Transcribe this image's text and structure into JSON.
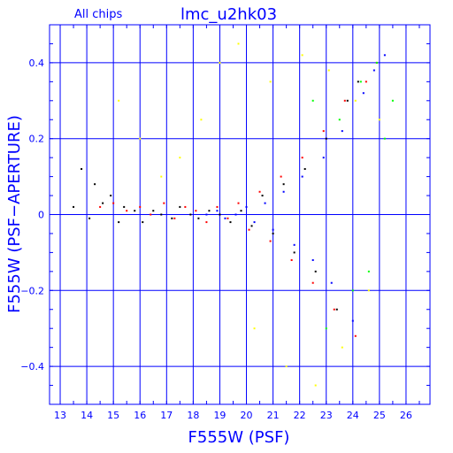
{
  "chart_data": {
    "type": "scatter",
    "title": "lmc_u2hk03",
    "subtitle": "All chips",
    "xlabel": "F555W (PSF)",
    "ylabel": "F555W (PSF−APERTURE)",
    "xlim": [
      12.6,
      26.9
    ],
    "ylim": [
      -0.5,
      0.5
    ],
    "x_ticks": [
      13,
      14,
      15,
      16,
      17,
      18,
      19,
      20,
      21,
      22,
      23,
      24,
      25,
      26
    ],
    "x_tick_labels": [
      "13",
      "14",
      "15",
      "16",
      "17",
      "18",
      "19",
      "20",
      "21",
      "22",
      "23",
      "24",
      "25",
      "26"
    ],
    "y_ticks": [
      -0.4,
      -0.2,
      0,
      0.2,
      0.4
    ],
    "y_tick_labels": [
      "−0.4",
      "−0.2",
      "0",
      "0.2",
      "0.4"
    ],
    "grid": true,
    "legend": "none",
    "colors": {
      "axes": "#0000ff",
      "grid": "#0000ff",
      "text": "#0000ff"
    },
    "series": [
      {
        "color": "#000000",
        "x": [
          13.5,
          13.8,
          14.1,
          14.3,
          14.6,
          14.9,
          15.2,
          15.4,
          15.8,
          16.1,
          16.5,
          16.8,
          17.2,
          17.5,
          17.9,
          18.2,
          18.6,
          19.0,
          19.4,
          19.8,
          20.2,
          20.6,
          21.0,
          21.4,
          21.8,
          22.2,
          22.6,
          23.0,
          23.4,
          23.8,
          24.2
        ],
        "y": [
          0.02,
          0.12,
          -0.01,
          0.08,
          0.03,
          0.05,
          -0.02,
          0.02,
          0.01,
          -0.02,
          0.01,
          0.0,
          -0.01,
          0.02,
          0.0,
          -0.01,
          0.01,
          0.0,
          -0.02,
          0.01,
          -0.03,
          0.05,
          -0.05,
          0.08,
          -0.1,
          0.12,
          -0.15,
          0.2,
          -0.25,
          0.3,
          0.35
        ]
      },
      {
        "color": "#ff0000",
        "x": [
          14.5,
          15.0,
          15.5,
          16.0,
          16.4,
          16.9,
          17.3,
          17.7,
          18.1,
          18.5,
          18.9,
          19.3,
          19.7,
          20.1,
          20.5,
          20.9,
          21.3,
          21.7,
          22.1,
          22.5,
          22.9,
          23.3,
          23.7,
          24.1,
          24.5,
          24.9
        ],
        "y": [
          0.02,
          0.03,
          0.01,
          0.02,
          0.0,
          0.03,
          -0.01,
          0.02,
          0.01,
          -0.02,
          0.02,
          -0.01,
          0.03,
          -0.04,
          0.06,
          -0.07,
          0.1,
          -0.12,
          0.15,
          -0.18,
          0.22,
          -0.25,
          0.3,
          -0.32,
          0.35,
          0.4
        ]
      },
      {
        "color": "#0000ff",
        "x": [
          18.5,
          18.9,
          19.2,
          19.6,
          20.0,
          20.3,
          20.7,
          21.0,
          21.4,
          21.8,
          22.1,
          22.5,
          22.9,
          23.2,
          23.6,
          24.0,
          24.4,
          24.8,
          25.2
        ],
        "y": [
          0.0,
          0.01,
          -0.01,
          0.0,
          0.02,
          -0.02,
          0.03,
          -0.04,
          0.06,
          -0.08,
          0.1,
          -0.12,
          0.15,
          -0.18,
          0.22,
          -0.28,
          0.32,
          0.38,
          0.42
        ]
      },
      {
        "color": "#ffff00",
        "x": [
          15.2,
          16.0,
          16.8,
          17.5,
          18.3,
          19.0,
          19.7,
          20.3,
          20.9,
          21.5,
          22.1,
          22.6,
          23.1,
          23.6,
          24.1,
          24.6,
          25.0
        ],
        "y": [
          0.3,
          0.2,
          0.1,
          0.15,
          0.25,
          0.4,
          0.45,
          -0.3,
          0.35,
          -0.4,
          0.42,
          -0.45,
          0.38,
          -0.35,
          0.3,
          -0.2,
          0.25
        ]
      },
      {
        "color": "#00ff00",
        "x": [
          22.5,
          23.0,
          23.5,
          24.0,
          24.3,
          24.6,
          24.9,
          25.2,
          25.5
        ],
        "y": [
          0.3,
          -0.3,
          0.25,
          -0.2,
          0.35,
          -0.15,
          0.4,
          0.2,
          0.3
        ]
      }
    ]
  }
}
